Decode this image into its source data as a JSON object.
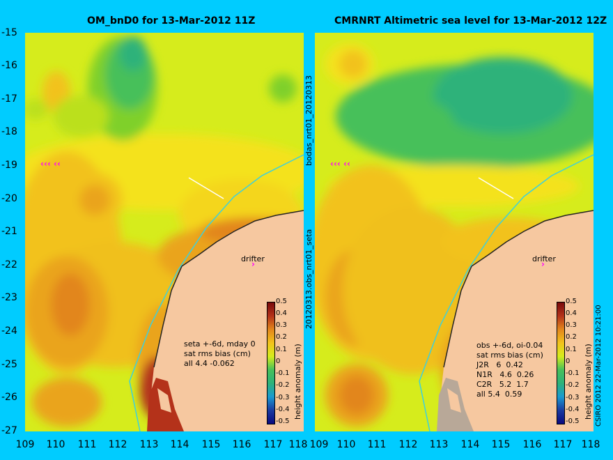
{
  "left": {
    "title": "OM_bnD0 for 13-Mar-2012 11Z",
    "stats": "seta +-6d, mday 0\nsat rms bias (cm)\nall 4.4 -0.062"
  },
  "right": {
    "title": "CMRNRT Altimetric sea level  for 13-Mar-2012 12Z",
    "stats": "obs +-6d, oi-0.04\nsat rms bias (cm)\nJ2R   6  0.42\nN1R   4.6  0.26\nC2R   5.2  1.7\nall 5.4  0.59"
  },
  "y_ticks": [
    "-15",
    "-16",
    "-17",
    "-18",
    "-19",
    "-20",
    "-21",
    "-22",
    "-23",
    "-24",
    "-25",
    "-26",
    "-27"
  ],
  "x_ticks": [
    "109",
    "110",
    "111",
    "112",
    "113",
    "114",
    "115",
    "116",
    "117",
    "118"
  ],
  "x_ticks_right": [
    "109",
    "110",
    "111",
    "112",
    "113",
    "114",
    "115",
    "116",
    "117",
    "118"
  ],
  "colorbar": {
    "ticks": [
      "0.5",
      "0.4",
      "0.3",
      "0.2",
      "0.1",
      "0",
      "-0.1",
      "-0.2",
      "-0.3",
      "-0.4",
      "-0.5"
    ],
    "unit": "height anomaly (m)"
  },
  "drifter_label": "drifter",
  "vertical_label_top": "bodas_nrt01_20120313",
  "vertical_label_bottom": "20120313.obs_nrt01_seta",
  "credit": "CSIRO 2012   22-Mar-2012 10:21:00"
}
